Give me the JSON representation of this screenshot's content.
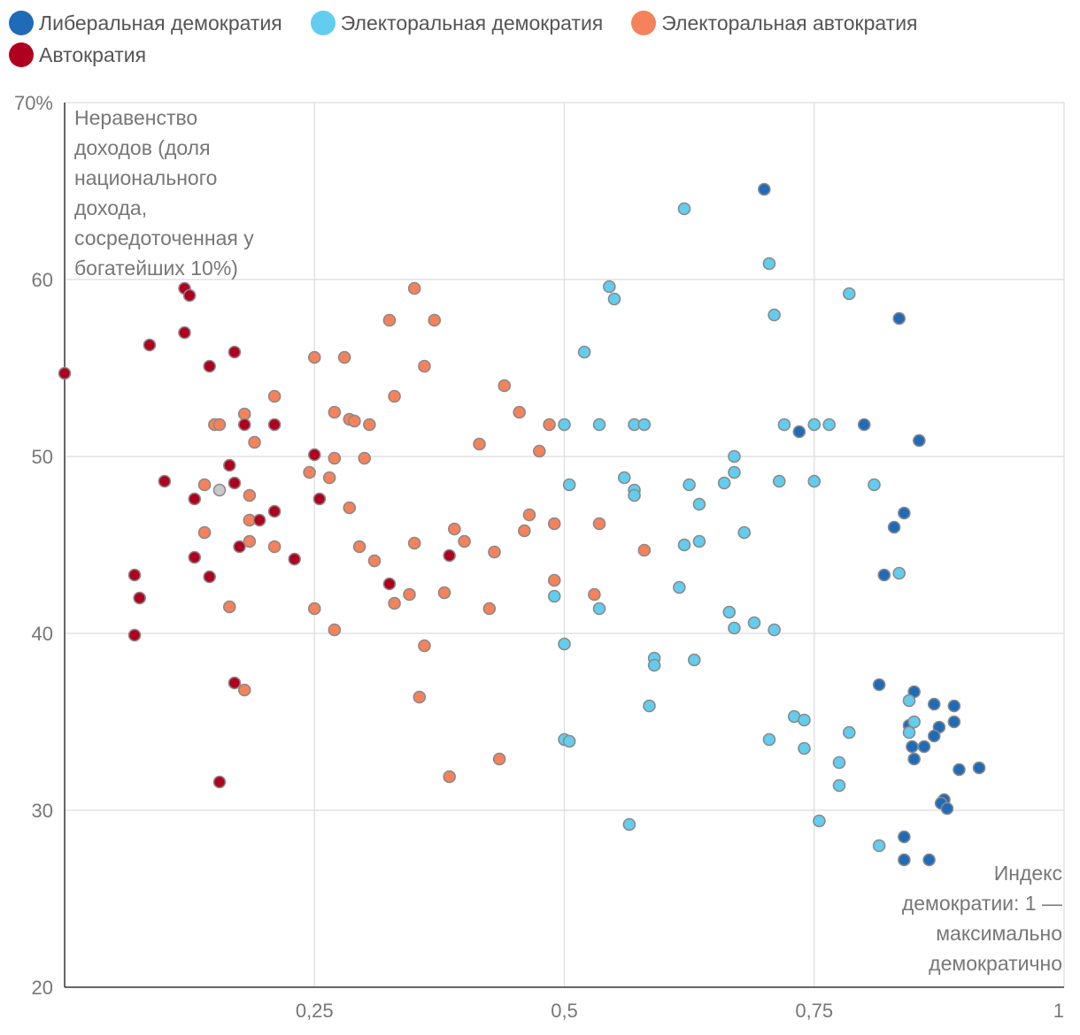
{
  "chart_data": {
    "type": "scatter",
    "title": "",
    "ylabel": "Неравенство доходов (доля национального дохода, сосредоточенная у богатейших 10%)",
    "ylabel_lines": [
      "Неравенство",
      "доходов (доля",
      "национального",
      "дохода,",
      "сосредоточенная у",
      "богатейших 10%)"
    ],
    "xlabel": "Индекс демократии: 1 — максимально демократично",
    "xlabel_lines": [
      "Индекс",
      "демократии: 1 —",
      "максимально",
      "демократично"
    ],
    "xlim": [
      0,
      1
    ],
    "ylim": [
      20,
      70
    ],
    "x_ticks": [
      {
        "v": 0.25,
        "label": "0,25"
      },
      {
        "v": 0.5,
        "label": "0,5"
      },
      {
        "v": 0.75,
        "label": "0,75"
      },
      {
        "v": 1,
        "label": "1"
      }
    ],
    "y_ticks": [
      {
        "v": 20,
        "label": "20"
      },
      {
        "v": 30,
        "label": "30"
      },
      {
        "v": 40,
        "label": "40"
      },
      {
        "v": 50,
        "label": "50"
      },
      {
        "v": 60,
        "label": "60"
      },
      {
        "v": 70,
        "label": "70%"
      }
    ],
    "grid": true,
    "legend_position": "top",
    "series": [
      {
        "name": "Либеральная демократия",
        "color": "#1f6bb8",
        "points": [
          [
            0.7,
            65.1
          ],
          [
            0.735,
            51.4
          ],
          [
            0.8,
            51.8
          ],
          [
            0.835,
            57.8
          ],
          [
            0.855,
            50.9
          ],
          [
            0.84,
            46.8
          ],
          [
            0.83,
            46.0
          ],
          [
            0.82,
            43.3
          ],
          [
            0.815,
            37.1
          ],
          [
            0.85,
            36.7
          ],
          [
            0.87,
            36.0
          ],
          [
            0.89,
            35.9
          ],
          [
            0.89,
            35.0
          ],
          [
            0.875,
            34.7
          ],
          [
            0.845,
            34.8
          ],
          [
            0.87,
            34.2
          ],
          [
            0.848,
            33.6
          ],
          [
            0.86,
            33.6
          ],
          [
            0.85,
            32.9
          ],
          [
            0.895,
            32.3
          ],
          [
            0.915,
            32.4
          ],
          [
            0.88,
            30.6
          ],
          [
            0.877,
            30.4
          ],
          [
            0.883,
            30.1
          ],
          [
            0.84,
            28.5
          ],
          [
            0.84,
            27.2
          ],
          [
            0.865,
            27.2
          ]
        ]
      },
      {
        "name": "Электоральная демократия",
        "color": "#62cdef",
        "points": [
          [
            0.62,
            64.0
          ],
          [
            0.705,
            60.9
          ],
          [
            0.71,
            58.0
          ],
          [
            0.785,
            59.2
          ],
          [
            0.545,
            59.6
          ],
          [
            0.55,
            58.9
          ],
          [
            0.52,
            55.9
          ],
          [
            0.5,
            51.8
          ],
          [
            0.535,
            51.8
          ],
          [
            0.57,
            51.8
          ],
          [
            0.58,
            51.8
          ],
          [
            0.72,
            51.8
          ],
          [
            0.75,
            51.8
          ],
          [
            0.765,
            51.8
          ],
          [
            0.67,
            50.0
          ],
          [
            0.67,
            49.1
          ],
          [
            0.66,
            48.5
          ],
          [
            0.715,
            48.6
          ],
          [
            0.75,
            48.6
          ],
          [
            0.81,
            48.4
          ],
          [
            0.505,
            48.4
          ],
          [
            0.56,
            48.8
          ],
          [
            0.57,
            48.1
          ],
          [
            0.57,
            47.8
          ],
          [
            0.625,
            48.4
          ],
          [
            0.635,
            47.3
          ],
          [
            0.68,
            45.7
          ],
          [
            0.62,
            45.0
          ],
          [
            0.635,
            45.2
          ],
          [
            0.835,
            43.4
          ],
          [
            0.615,
            42.6
          ],
          [
            0.49,
            42.1
          ],
          [
            0.535,
            41.4
          ],
          [
            0.665,
            41.2
          ],
          [
            0.67,
            40.3
          ],
          [
            0.69,
            40.6
          ],
          [
            0.71,
            40.2
          ],
          [
            0.5,
            39.4
          ],
          [
            0.59,
            38.6
          ],
          [
            0.59,
            38.2
          ],
          [
            0.63,
            38.5
          ],
          [
            0.585,
            35.9
          ],
          [
            0.73,
            35.3
          ],
          [
            0.74,
            35.1
          ],
          [
            0.785,
            34.4
          ],
          [
            0.845,
            36.2
          ],
          [
            0.85,
            35.0
          ],
          [
            0.845,
            34.4
          ],
          [
            0.5,
            34.0
          ],
          [
            0.505,
            33.9
          ],
          [
            0.705,
            34.0
          ],
          [
            0.74,
            33.5
          ],
          [
            0.775,
            32.7
          ],
          [
            0.775,
            31.4
          ],
          [
            0.565,
            29.2
          ],
          [
            0.755,
            29.4
          ],
          [
            0.815,
            28.0
          ]
        ]
      },
      {
        "name": "Электоральная автократия",
        "color": "#f5825a",
        "points": [
          [
            0.35,
            59.5
          ],
          [
            0.325,
            57.7
          ],
          [
            0.37,
            57.7
          ],
          [
            0.25,
            55.6
          ],
          [
            0.28,
            55.6
          ],
          [
            0.36,
            55.1
          ],
          [
            0.44,
            54.0
          ],
          [
            0.33,
            53.4
          ],
          [
            0.21,
            53.4
          ],
          [
            0.15,
            51.8
          ],
          [
            0.155,
            51.8
          ],
          [
            0.18,
            52.4
          ],
          [
            0.27,
            52.5
          ],
          [
            0.285,
            52.1
          ],
          [
            0.29,
            52.0
          ],
          [
            0.305,
            51.8
          ],
          [
            0.455,
            52.5
          ],
          [
            0.485,
            51.8
          ],
          [
            0.19,
            50.8
          ],
          [
            0.415,
            50.7
          ],
          [
            0.475,
            50.3
          ],
          [
            0.245,
            49.1
          ],
          [
            0.265,
            48.8
          ],
          [
            0.27,
            49.9
          ],
          [
            0.3,
            49.9
          ],
          [
            0.14,
            48.4
          ],
          [
            0.185,
            47.8
          ],
          [
            0.285,
            47.1
          ],
          [
            0.465,
            46.7
          ],
          [
            0.185,
            46.4
          ],
          [
            0.49,
            46.2
          ],
          [
            0.535,
            46.2
          ],
          [
            0.14,
            45.7
          ],
          [
            0.39,
            45.9
          ],
          [
            0.46,
            45.8
          ],
          [
            0.185,
            45.2
          ],
          [
            0.21,
            44.9
          ],
          [
            0.35,
            45.1
          ],
          [
            0.4,
            45.2
          ],
          [
            0.295,
            44.9
          ],
          [
            0.31,
            44.1
          ],
          [
            0.43,
            44.6
          ],
          [
            0.58,
            44.7
          ],
          [
            0.49,
            43.0
          ],
          [
            0.345,
            42.2
          ],
          [
            0.38,
            42.3
          ],
          [
            0.53,
            42.2
          ],
          [
            0.33,
            41.7
          ],
          [
            0.25,
            41.4
          ],
          [
            0.425,
            41.4
          ],
          [
            0.165,
            41.5
          ],
          [
            0.27,
            40.2
          ],
          [
            0.36,
            39.3
          ],
          [
            0.18,
            36.8
          ],
          [
            0.355,
            36.4
          ],
          [
            0.435,
            32.9
          ],
          [
            0.385,
            31.9
          ]
        ]
      },
      {
        "name": "Автократия",
        "color": "#b00020",
        "points": [
          [
            0.0,
            54.7
          ],
          [
            0.12,
            59.5
          ],
          [
            0.125,
            59.1
          ],
          [
            0.085,
            56.3
          ],
          [
            0.12,
            57.0
          ],
          [
            0.145,
            55.1
          ],
          [
            0.17,
            55.9
          ],
          [
            0.18,
            51.8
          ],
          [
            0.21,
            51.8
          ],
          [
            0.25,
            50.1
          ],
          [
            0.165,
            49.5
          ],
          [
            0.1,
            48.6
          ],
          [
            0.17,
            48.5
          ],
          [
            0.13,
            47.6
          ],
          [
            0.255,
            47.6
          ],
          [
            0.21,
            46.9
          ],
          [
            0.195,
            46.4
          ],
          [
            0.175,
            44.9
          ],
          [
            0.23,
            44.2
          ],
          [
            0.385,
            44.4
          ],
          [
            0.13,
            44.3
          ],
          [
            0.07,
            43.3
          ],
          [
            0.145,
            43.2
          ],
          [
            0.325,
            42.8
          ],
          [
            0.075,
            42.0
          ],
          [
            0.07,
            39.9
          ],
          [
            0.17,
            37.2
          ],
          [
            0.155,
            31.6
          ]
        ]
      },
      {
        "name": "",
        "color": "#c8c8c8",
        "points": [
          [
            0.155,
            48.1
          ]
        ]
      }
    ]
  }
}
